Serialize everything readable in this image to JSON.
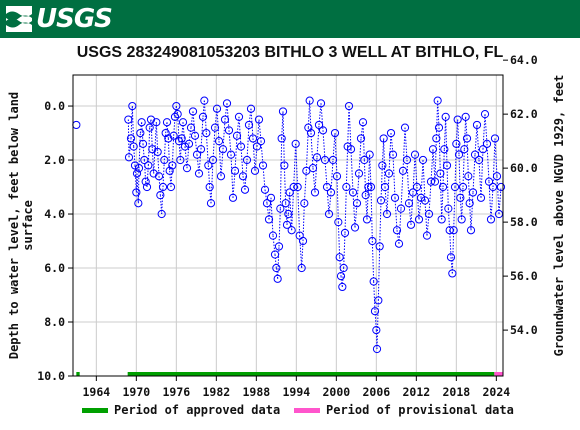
{
  "header": {
    "agency": "USGS"
  },
  "chart_data": {
    "type": "scatter",
    "title": "USGS 283249081053203 BITHLO 3 WELL AT BITHLO, FL",
    "ylabel_left_line1": "Depth to water level, feet below land",
    "ylabel_left_line2": "surface",
    "ylabel_right": "Groundwater level above NGVD 1929, feet",
    "x_ticks": [
      1964,
      1970,
      1976,
      1982,
      1988,
      1994,
      2000,
      2006,
      2012,
      2018,
      2024
    ],
    "y_left_ticks": [
      "0.0",
      "2.0",
      "4.0",
      "6.0",
      "8.0",
      "10.0"
    ],
    "y_right_ticks": [
      "64.0",
      "62.0",
      "60.0",
      "58.0",
      "56.0",
      "54.0"
    ],
    "xlim": [
      1960.5,
      2025
    ],
    "ylim_left": [
      -1.15,
      10.0
    ],
    "ylim_right": [
      64.0,
      54.0
    ],
    "right_axis_offset": 62.3,
    "grid": true,
    "marker": "open-circle",
    "series_color": "#0000ff",
    "approved_periods": [
      [
        1961.0,
        1961.5
      ],
      [
        1968.7,
        2023.7
      ]
    ],
    "provisional_periods": [
      [
        2023.7,
        2025.0
      ]
    ],
    "approved_color": "#00a000",
    "provisional_color": "#ff55cc",
    "legend": {
      "approved_label": "Period of approved data",
      "provisional_label": "Period of provisional data"
    },
    "points": [
      [
        1961.0,
        0.7
      ],
      [
        1968.8,
        0.5
      ],
      [
        1968.9,
        1.9
      ],
      [
        1969.2,
        1.2
      ],
      [
        1969.4,
        0.0
      ],
      [
        1969.6,
        1.5
      ],
      [
        1969.8,
        2.2
      ],
      [
        1970.0,
        3.2
      ],
      [
        1970.1,
        2.5
      ],
      [
        1970.3,
        3.6
      ],
      [
        1970.4,
        2.3
      ],
      [
        1970.6,
        1.0
      ],
      [
        1970.8,
        0.6
      ],
      [
        1971.0,
        1.4
      ],
      [
        1971.2,
        2.0
      ],
      [
        1971.4,
        2.8
      ],
      [
        1971.6,
        3.0
      ],
      [
        1971.8,
        2.2
      ],
      [
        1972.0,
        0.8
      ],
      [
        1972.2,
        0.5
      ],
      [
        1972.4,
        1.6
      ],
      [
        1972.6,
        2.5
      ],
      [
        1973.0,
        0.6
      ],
      [
        1973.2,
        1.7
      ],
      [
        1973.4,
        2.6
      ],
      [
        1973.6,
        3.3
      ],
      [
        1973.8,
        4.0
      ],
      [
        1974.0,
        3.0
      ],
      [
        1974.2,
        2.0
      ],
      [
        1974.4,
        1.0
      ],
      [
        1974.6,
        0.6
      ],
      [
        1974.8,
        1.2
      ],
      [
        1975.0,
        2.4
      ],
      [
        1975.2,
        3.0
      ],
      [
        1975.4,
        2.2
      ],
      [
        1975.6,
        1.1
      ],
      [
        1975.8,
        0.4
      ],
      [
        1976.0,
        0.0
      ],
      [
        1976.2,
        0.3
      ],
      [
        1976.4,
        1.3
      ],
      [
        1976.6,
        2.0
      ],
      [
        1976.8,
        1.2
      ],
      [
        1977.0,
        0.6
      ],
      [
        1977.3,
        1.5
      ],
      [
        1977.6,
        2.3
      ],
      [
        1977.9,
        1.4
      ],
      [
        1978.2,
        0.8
      ],
      [
        1978.5,
        0.2
      ],
      [
        1978.8,
        1.1
      ],
      [
        1979.1,
        1.8
      ],
      [
        1979.4,
        2.5
      ],
      [
        1979.7,
        1.6
      ],
      [
        1980.0,
        0.4
      ],
      [
        1980.2,
        -0.2
      ],
      [
        1980.5,
        1.0
      ],
      [
        1980.8,
        2.2
      ],
      [
        1981.0,
        3.0
      ],
      [
        1981.2,
        3.6
      ],
      [
        1981.5,
        2.0
      ],
      [
        1981.8,
        0.8
      ],
      [
        1982.1,
        0.1
      ],
      [
        1982.4,
        1.3
      ],
      [
        1982.7,
        2.6
      ],
      [
        1983.0,
        1.6
      ],
      [
        1983.3,
        0.5
      ],
      [
        1983.6,
        -0.1
      ],
      [
        1983.9,
        0.9
      ],
      [
        1984.2,
        1.8
      ],
      [
        1984.5,
        3.4
      ],
      [
        1984.8,
        2.4
      ],
      [
        1985.1,
        1.1
      ],
      [
        1985.4,
        0.4
      ],
      [
        1985.7,
        1.5
      ],
      [
        1986.0,
        2.6
      ],
      [
        1986.3,
        3.1
      ],
      [
        1986.6,
        2.0
      ],
      [
        1986.9,
        0.7
      ],
      [
        1987.2,
        0.1
      ],
      [
        1987.5,
        1.2
      ],
      [
        1987.8,
        2.4
      ],
      [
        1988.1,
        1.5
      ],
      [
        1988.4,
        0.5
      ],
      [
        1988.7,
        1.3
      ],
      [
        1989.0,
        2.2
      ],
      [
        1989.3,
        3.1
      ],
      [
        1989.6,
        3.6
      ],
      [
        1989.9,
        4.2
      ],
      [
        1990.2,
        3.4
      ],
      [
        1990.5,
        4.8
      ],
      [
        1990.8,
        5.5
      ],
      [
        1991.0,
        6.0
      ],
      [
        1991.2,
        6.4
      ],
      [
        1991.4,
        5.2
      ],
      [
        1991.6,
        3.8
      ],
      [
        1991.8,
        1.2
      ],
      [
        1992.0,
        0.2
      ],
      [
        1992.2,
        2.2
      ],
      [
        1992.4,
        3.6
      ],
      [
        1992.6,
        4.4
      ],
      [
        1992.8,
        4.0
      ],
      [
        1993.0,
        3.2
      ],
      [
        1993.3,
        4.6
      ],
      [
        1993.6,
        3.0
      ],
      [
        1993.9,
        1.4
      ],
      [
        1994.2,
        3.0
      ],
      [
        1994.5,
        4.8
      ],
      [
        1994.8,
        6.0
      ],
      [
        1995.0,
        5.0
      ],
      [
        1995.2,
        3.6
      ],
      [
        1995.5,
        2.4
      ],
      [
        1995.8,
        0.8
      ],
      [
        1996.0,
        -0.2
      ],
      [
        1996.2,
        1.0
      ],
      [
        1996.5,
        2.3
      ],
      [
        1996.8,
        3.2
      ],
      [
        1997.1,
        1.9
      ],
      [
        1997.4,
        0.7
      ],
      [
        1997.7,
        -0.1
      ],
      [
        1998.0,
        0.9
      ],
      [
        1998.3,
        2.0
      ],
      [
        1998.6,
        3.0
      ],
      [
        1998.9,
        4.0
      ],
      [
        1999.2,
        3.2
      ],
      [
        1999.5,
        2.0
      ],
      [
        1999.8,
        1.0
      ],
      [
        2000.1,
        2.6
      ],
      [
        2000.3,
        4.3
      ],
      [
        2000.5,
        5.6
      ],
      [
        2000.7,
        6.3
      ],
      [
        2000.9,
        6.7
      ],
      [
        2001.1,
        6.0
      ],
      [
        2001.3,
        4.7
      ],
      [
        2001.5,
        3.0
      ],
      [
        2001.7,
        1.5
      ],
      [
        2001.9,
        0.0
      ],
      [
        2002.2,
        1.6
      ],
      [
        2002.5,
        3.2
      ],
      [
        2002.8,
        4.5
      ],
      [
        2003.1,
        3.6
      ],
      [
        2003.4,
        2.5
      ],
      [
        2003.7,
        1.2
      ],
      [
        2004.0,
        0.6
      ],
      [
        2004.2,
        2.0
      ],
      [
        2004.4,
        3.3
      ],
      [
        2004.6,
        4.2
      ],
      [
        2004.8,
        3.0
      ],
      [
        2005.0,
        1.8
      ],
      [
        2005.2,
        3.0
      ],
      [
        2005.4,
        5.0
      ],
      [
        2005.6,
        6.5
      ],
      [
        2005.8,
        7.6
      ],
      [
        2006.0,
        8.3
      ],
      [
        2006.1,
        9.0
      ],
      [
        2006.3,
        7.2
      ],
      [
        2006.5,
        5.2
      ],
      [
        2006.7,
        3.5
      ],
      [
        2006.9,
        2.2
      ],
      [
        2007.1,
        1.2
      ],
      [
        2007.3,
        3.0
      ],
      [
        2007.6,
        4.0
      ],
      [
        2007.9,
        2.5
      ],
      [
        2008.2,
        1.0
      ],
      [
        2008.5,
        1.8
      ],
      [
        2008.8,
        3.4
      ],
      [
        2009.1,
        4.6
      ],
      [
        2009.4,
        5.1
      ],
      [
        2009.7,
        3.8
      ],
      [
        2010.0,
        2.4
      ],
      [
        2010.3,
        0.8
      ],
      [
        2010.6,
        2.0
      ],
      [
        2010.9,
        3.6
      ],
      [
        2011.2,
        4.4
      ],
      [
        2011.5,
        3.2
      ],
      [
        2011.8,
        1.8
      ],
      [
        2012.1,
        3.0
      ],
      [
        2012.4,
        4.2
      ],
      [
        2012.7,
        3.4
      ],
      [
        2013.0,
        2.0
      ],
      [
        2013.3,
        3.5
      ],
      [
        2013.6,
        4.8
      ],
      [
        2013.9,
        4.0
      ],
      [
        2014.2,
        2.8
      ],
      [
        2014.5,
        1.6
      ],
      [
        2014.8,
        2.8
      ],
      [
        2015.0,
        1.2
      ],
      [
        2015.2,
        -0.2
      ],
      [
        2015.4,
        0.8
      ],
      [
        2015.6,
        2.5
      ],
      [
        2015.8,
        4.2
      ],
      [
        2016.0,
        3.0
      ],
      [
        2016.2,
        1.6
      ],
      [
        2016.4,
        0.4
      ],
      [
        2016.6,
        2.2
      ],
      [
        2016.8,
        3.8
      ],
      [
        2017.0,
        4.6
      ],
      [
        2017.2,
        5.6
      ],
      [
        2017.4,
        6.2
      ],
      [
        2017.6,
        4.6
      ],
      [
        2017.8,
        3.0
      ],
      [
        2018.0,
        1.4
      ],
      [
        2018.2,
        0.5
      ],
      [
        2018.4,
        1.8
      ],
      [
        2018.6,
        3.4
      ],
      [
        2018.8,
        4.2
      ],
      [
        2019.0,
        3.0
      ],
      [
        2019.2,
        1.6
      ],
      [
        2019.4,
        0.4
      ],
      [
        2019.6,
        1.2
      ],
      [
        2019.8,
        2.6
      ],
      [
        2020.0,
        3.6
      ],
      [
        2020.2,
        4.6
      ],
      [
        2020.5,
        3.2
      ],
      [
        2020.8,
        1.8
      ],
      [
        2021.1,
        0.7
      ],
      [
        2021.4,
        2.0
      ],
      [
        2021.7,
        3.4
      ],
      [
        2022.0,
        1.6
      ],
      [
        2022.3,
        0.3
      ],
      [
        2022.6,
        1.4
      ],
      [
        2022.9,
        2.8
      ],
      [
        2023.2,
        4.2
      ],
      [
        2023.5,
        3.0
      ],
      [
        2023.8,
        1.2
      ],
      [
        2024.1,
        2.6
      ],
      [
        2024.4,
        4.0
      ],
      [
        2024.7,
        3.0
      ]
    ]
  }
}
